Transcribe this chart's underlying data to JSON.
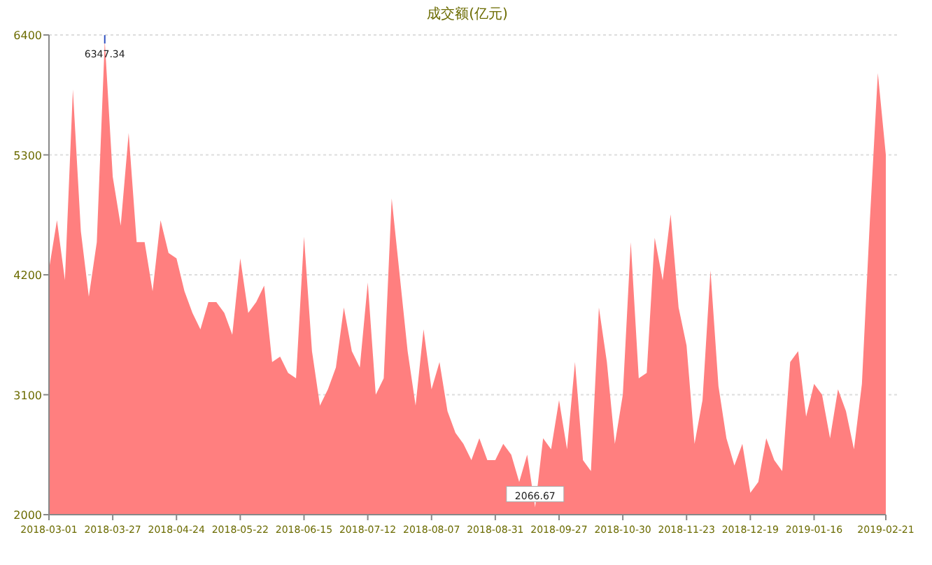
{
  "chart_data": {
    "type": "area",
    "title": "成交额(亿元)",
    "categories": [
      "2018-03-01",
      null,
      null,
      null,
      null,
      null,
      null,
      null,
      "2018-03-27",
      null,
      null,
      null,
      null,
      null,
      null,
      null,
      "2018-04-24",
      null,
      null,
      null,
      null,
      null,
      null,
      null,
      "2018-05-22",
      null,
      null,
      null,
      null,
      null,
      null,
      null,
      "2018-06-15",
      null,
      null,
      null,
      null,
      null,
      null,
      null,
      "2018-07-12",
      null,
      null,
      null,
      null,
      null,
      null,
      null,
      "2018-08-07",
      null,
      null,
      null,
      null,
      null,
      null,
      null,
      "2018-08-31",
      null,
      null,
      null,
      null,
      null,
      null,
      null,
      "2018-09-27",
      null,
      null,
      null,
      null,
      null,
      null,
      null,
      "2018-10-30",
      null,
      null,
      null,
      null,
      null,
      null,
      null,
      "2018-11-23",
      null,
      null,
      null,
      null,
      null,
      null,
      null,
      "2018-12-19",
      null,
      null,
      null,
      null,
      null,
      null,
      null,
      "2019-01-16",
      null,
      null,
      null,
      null,
      null,
      null,
      null,
      null,
      "2019-02-21"
    ],
    "values": [
      4250,
      4700,
      4150,
      5900,
      4600,
      4000,
      4500,
      6347.34,
      5100,
      4650,
      5500,
      4500,
      4500,
      4050,
      4700,
      4400,
      4350,
      4050,
      3850,
      3700,
      3950,
      3950,
      3850,
      3650,
      4350,
      3850,
      3950,
      4100,
      3400,
      3450,
      3300,
      3250,
      4550,
      3500,
      3000,
      3150,
      3350,
      3900,
      3500,
      3350,
      4130,
      3100,
      3250,
      4900,
      4200,
      3500,
      3000,
      3700,
      3150,
      3400,
      2950,
      2750,
      2650,
      2500,
      2700,
      2500,
      2500,
      2650,
      2550,
      2300,
      2550,
      2066.67,
      2700,
      2600,
      3050,
      2600,
      3400,
      2500,
      2400,
      3900,
      3400,
      2650,
      3100,
      4500,
      3250,
      3300,
      4540,
      4150,
      4755,
      3900,
      3550,
      2650,
      3050,
      4240,
      3180,
      2700,
      2450,
      2650,
      2200,
      2300,
      2700,
      2500,
      2400,
      3400,
      3500,
      2900,
      3200,
      3100,
      2700,
      3150,
      2950,
      2600,
      3200,
      4700,
      6050,
      5300
    ],
    "color": "#ff7f7f",
    "ylim": [
      2000,
      6400
    ],
    "yticks": [
      2000,
      3100,
      4200,
      5300,
      6400
    ],
    "grid": "y",
    "annotations": [
      {
        "text": "6347.34",
        "y": 6347.34
      },
      {
        "text": "2066.67",
        "y": 2066.67
      }
    ]
  }
}
